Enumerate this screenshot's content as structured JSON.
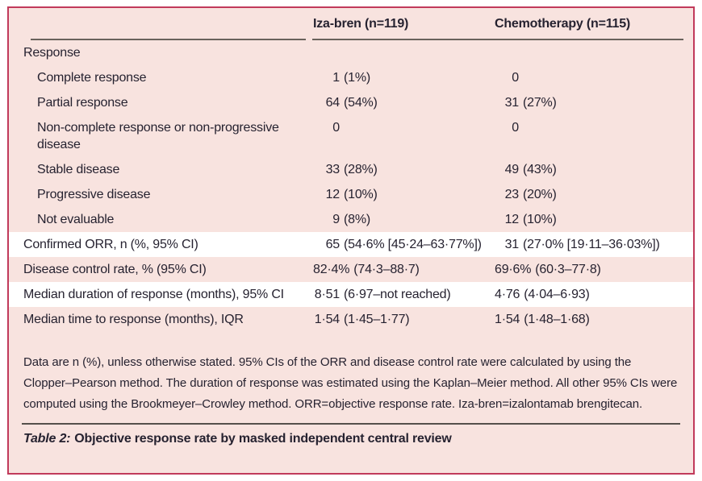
{
  "colors": {
    "border_accent": "#c13a5b",
    "panel_background": "#f8e3df",
    "highlight_row": "#ffffff",
    "text": "#262230",
    "header_rule": "#6a625c"
  },
  "table": {
    "columns": {
      "col1": "Iza-bren (n=119)",
      "col2": "Chemotherapy (n=115)"
    },
    "rows": [
      {
        "label": "Response",
        "c1n": "",
        "c1r": "",
        "c2n": "",
        "c2r": ""
      },
      {
        "label": "Complete response",
        "c1n": "1",
        "c1r": "(1%)",
        "c2n": "0",
        "c2r": ""
      },
      {
        "label": "Partial response",
        "c1n": "64",
        "c1r": "(54%)",
        "c2n": "31",
        "c2r": "(27%)"
      },
      {
        "label": "Non-complete response or non-progressive disease",
        "c1n": "0",
        "c1r": "",
        "c2n": "0",
        "c2r": ""
      },
      {
        "label": "Stable disease",
        "c1n": "33",
        "c1r": "(28%)",
        "c2n": "49",
        "c2r": "(43%)"
      },
      {
        "label": "Progressive disease",
        "c1n": "12",
        "c1r": "(10%)",
        "c2n": "23",
        "c2r": "(20%)"
      },
      {
        "label": "Not evaluable",
        "c1n": "9",
        "c1r": "(8%)",
        "c2n": "12",
        "c2r": "(10%)"
      },
      {
        "label": "Confirmed ORR, n (%, 95% CI)",
        "c1n": "65",
        "c1r": "(54·6% [45·24–63·77%])",
        "c2n": "31",
        "c2r": "(27·0% [19·11–36·03%])"
      },
      {
        "label": "Disease control rate, % (95% CI)",
        "c1n": "82·4%",
        "c1r": "(74·3–88·7)",
        "c2n": "69·6%",
        "c2r": "(60·3–77·8)"
      },
      {
        "label": "Median duration of response (months), 95% CI",
        "c1n": "8·51",
        "c1r": "(6·97–not reached)",
        "c2n": "4·76",
        "c2r": "(4·04–6·93)"
      },
      {
        "label": "Median time to response (months), IQR",
        "c1n": "1·54",
        "c1r": "(1·45–1·77)",
        "c2n": "1·54",
        "c2r": "(1·48–1·68)"
      }
    ]
  },
  "footnote": {
    "text": "Data are n (%), unless otherwise stated. 95% CIs of the ORR and disease control rate were calculated by using the Clopper–Pearson method. The duration of response was estimated using the Kaplan–Meier method. All other 95% CIs were computed using the Brookmeyer–Crowley method. ORR=objective response rate. Iza-bren=izalontamab brengitecan."
  },
  "caption": {
    "prefix": "Table 2:",
    "text": "Objective response rate by masked independent central review"
  }
}
